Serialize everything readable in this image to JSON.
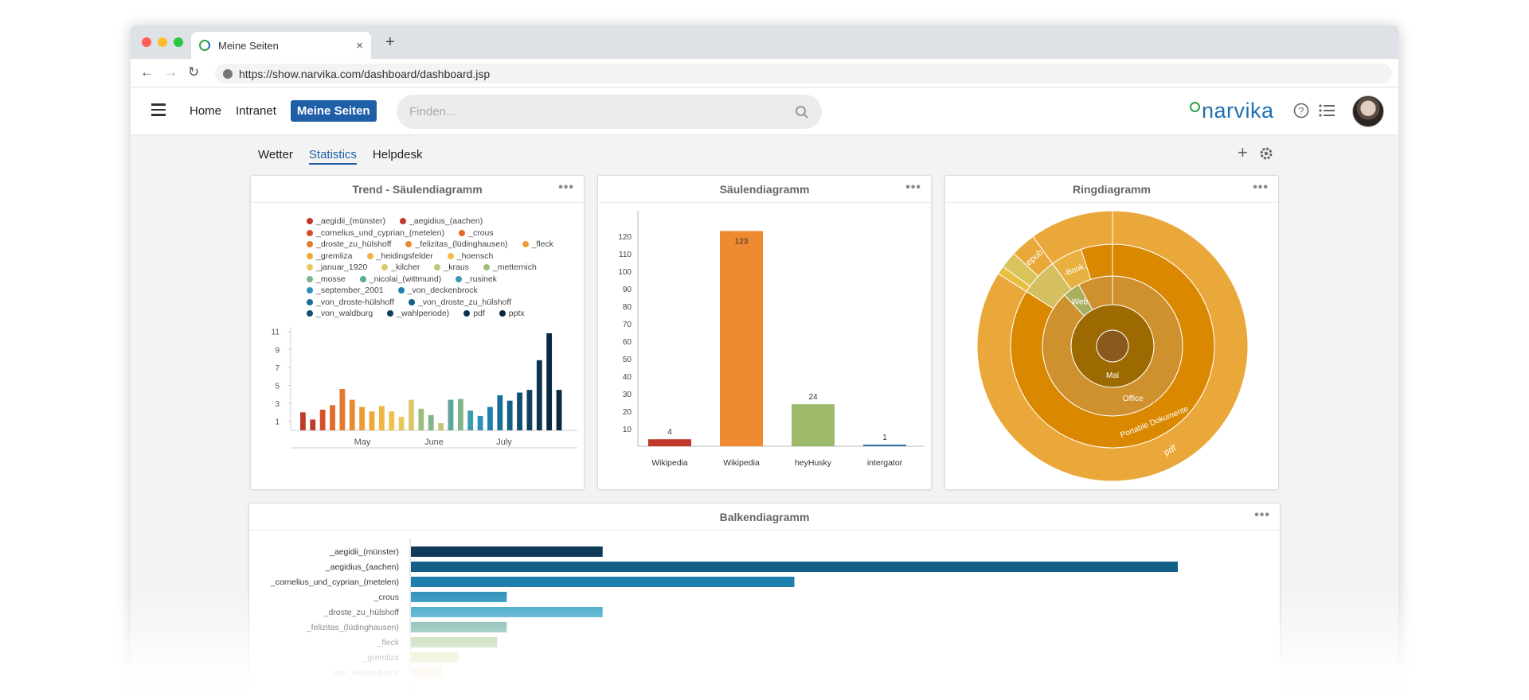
{
  "browser": {
    "tab_title": "Meine Seiten",
    "close_glyph": "×",
    "new_tab_glyph": "+",
    "url": "https://show.narvika.com/dashboard/dashboard.jsp",
    "window_dots": [
      "#ff5f57",
      "#febc2e",
      "#28c840"
    ]
  },
  "header": {
    "nav": [
      {
        "label": "Home"
      },
      {
        "label": "Intranet"
      },
      {
        "label": "Meine Seiten",
        "active": true
      }
    ],
    "search_placeholder": "Finden...",
    "logo_text": "narvika",
    "icons": [
      "help-icon",
      "list-icon"
    ]
  },
  "subtabs": [
    {
      "label": "Wetter"
    },
    {
      "label": "Statistics",
      "selected": true
    },
    {
      "label": "Helpdesk"
    }
  ],
  "cards": {
    "trend_title": "Trend - Säulendiagramm",
    "column_title": "Säulendiagramm",
    "ring_title": "Ringdiagramm",
    "bar_title": "Balkendiagramm",
    "more_glyph": "•••"
  },
  "chart_data": [
    {
      "type": "bar",
      "title": "Trend - Säulendiagramm",
      "legend": [
        {
          "name": "_aegidii_(münster)",
          "color": "#c0392b"
        },
        {
          "name": "_aegidius_(aachen)",
          "color": "#c0392b"
        },
        {
          "name": "_cornelius_und_cyprian_(metelen)",
          "color": "#d4502a"
        },
        {
          "name": "_crous",
          "color": "#e06b2a"
        },
        {
          "name": "_droste_zu_hülshoff",
          "color": "#e6782e"
        },
        {
          "name": "_felizitas_(lüdinghausen)",
          "color": "#ea8a30"
        },
        {
          "name": "_fleck",
          "color": "#ee9a33"
        },
        {
          "name": "_gremliza",
          "color": "#f0a838"
        },
        {
          "name": "_heidingsfelder",
          "color": "#f0b440"
        },
        {
          "name": "_hoensch",
          "color": "#eec24a"
        },
        {
          "name": "_januar_1920",
          "color": "#e8c85a"
        },
        {
          "name": "_kilcher",
          "color": "#d9c86a"
        },
        {
          "name": "_kraus",
          "color": "#c1c57a"
        },
        {
          "name": "_metternich",
          "color": "#9dbd7d"
        },
        {
          "name": "_mosse",
          "color": "#7fb58a"
        },
        {
          "name": "_nicolai_(wittmund)",
          "color": "#5ba89a"
        },
        {
          "name": "_rusinek",
          "color": "#3b9cae"
        },
        {
          "name": "_september_2001",
          "color": "#2a8fba"
        },
        {
          "name": "_von_deckenbrock",
          "color": "#1e7fae"
        },
        {
          "name": "_von_droste-hülshoff",
          "color": "#186f9c"
        },
        {
          "name": "_von_droste_zu_hülshoff",
          "color": "#145f88"
        },
        {
          "name": "_von_waldburg",
          "color": "#114f74"
        },
        {
          "name": "_wahlperiode)",
          "color": "#0f4060"
        },
        {
          "name": "pdf",
          "color": "#0d3350"
        },
        {
          "name": "pptx",
          "color": "#0b2942"
        }
      ],
      "x_tick_labels": [
        "May",
        "June",
        "July"
      ],
      "y_ticks": [
        1,
        3,
        5,
        7,
        9,
        11
      ],
      "ylim": [
        0,
        11.5
      ],
      "values": [
        2,
        1.2,
        2.3,
        2.8,
        4.6,
        3.4,
        2.6,
        2.1,
        2.7,
        2.1,
        1.5,
        3.4,
        2.4,
        1.7,
        0.8,
        3.4,
        3.5,
        2.2,
        1.6,
        2.6,
        3.9,
        3.3,
        4.2,
        4.5,
        7.8,
        10.8,
        4.5
      ],
      "colors": [
        "#c0392b",
        "#c0392b",
        "#d4502a",
        "#e06b2a",
        "#e6782e",
        "#ea8a30",
        "#ee9a33",
        "#f0a838",
        "#f0b440",
        "#eec24a",
        "#e8c85a",
        "#d9c86a",
        "#9dbd7d",
        "#7fb58a",
        "#c1c57a",
        "#5ba89a",
        "#7fb58a",
        "#3b9cae",
        "#2a8fba",
        "#1e7fae",
        "#186f9c",
        "#145f88",
        "#114f74",
        "#0f4060",
        "#0d3350",
        "#0b2942",
        "#0b2942"
      ]
    },
    {
      "type": "bar",
      "title": "Säulendiagramm",
      "categories": [
        "Wikipedia",
        "Wikipedia",
        "heyHusky",
        "intergator"
      ],
      "values": [
        4,
        123,
        24,
        1
      ],
      "colors": [
        "#c0392b",
        "#ee8a2f",
        "#9cba6a",
        "#3b78b0"
      ],
      "y_ticks": [
        10,
        20,
        30,
        40,
        50,
        60,
        70,
        80,
        90,
        100,
        110,
        120
      ],
      "ylim": [
        0,
        130
      ]
    },
    {
      "type": "pie",
      "title": "Ringdiagramm",
      "rings": [
        {
          "slices": [
            {
              "label": "",
              "value": 1,
              "color": "#8a5a1c"
            }
          ]
        },
        {
          "slices": [
            {
              "label": "Mal",
              "value": 1,
              "color": "#9c6a00"
            }
          ]
        },
        {
          "slices": [
            {
              "label": "Office",
              "value": 0.88,
              "color": "#cf902e"
            },
            {
              "label": "Web",
              "value": 0.04,
              "color": "#a8b060"
            },
            {
              "label": "",
              "value": 0.08,
              "color": "#cf902e"
            }
          ]
        },
        {
          "slices": [
            {
              "label": "Portable Dokumente",
              "value": 0.84,
              "color": "#d98800"
            },
            {
              "label": "",
              "value": 0.06,
              "color": "#d4c060"
            },
            {
              "label": "-Book",
              "value": 0.05,
              "color": "#e7b040"
            },
            {
              "label": "",
              "value": 0.05,
              "color": "#d98800"
            }
          ]
        },
        {
          "slices": [
            {
              "label": "pdf",
              "value": 0.84,
              "color": "#eba83a"
            },
            {
              "label": "",
              "value": 0.01,
              "color": "#e7c040"
            },
            {
              "label": "",
              "value": 0.02,
              "color": "#d8c45a"
            },
            {
              "label": "epub",
              "value": 0.03,
              "color": "#eba83a"
            },
            {
              "label": "",
              "value": 0.1,
              "color": "#eba83a"
            }
          ]
        }
      ]
    },
    {
      "type": "bar",
      "orientation": "horizontal",
      "title": "Balkendiagramm",
      "categories": [
        "_aegidii_(münster)",
        "_aegidius_(aachen)",
        "_cornelius_und_cyprian_(metelen)",
        "_crous",
        "_droste_zu_hülshoff",
        "_felizitas_(lüdinghausen)",
        "_fleck",
        "_gremliza",
        "_von_deckenbrock"
      ],
      "values": [
        20,
        80,
        40,
        10,
        20,
        10,
        9,
        5,
        3.2
      ],
      "xlim": [
        0,
        80
      ],
      "colors": [
        "#0f3a5a",
        "#145f88",
        "#1e7fae",
        "#2a8fba",
        "#2a9ec0",
        "#5ba89a",
        "#9dc48a",
        "#d8d890",
        "#f0c89a"
      ]
    }
  ]
}
